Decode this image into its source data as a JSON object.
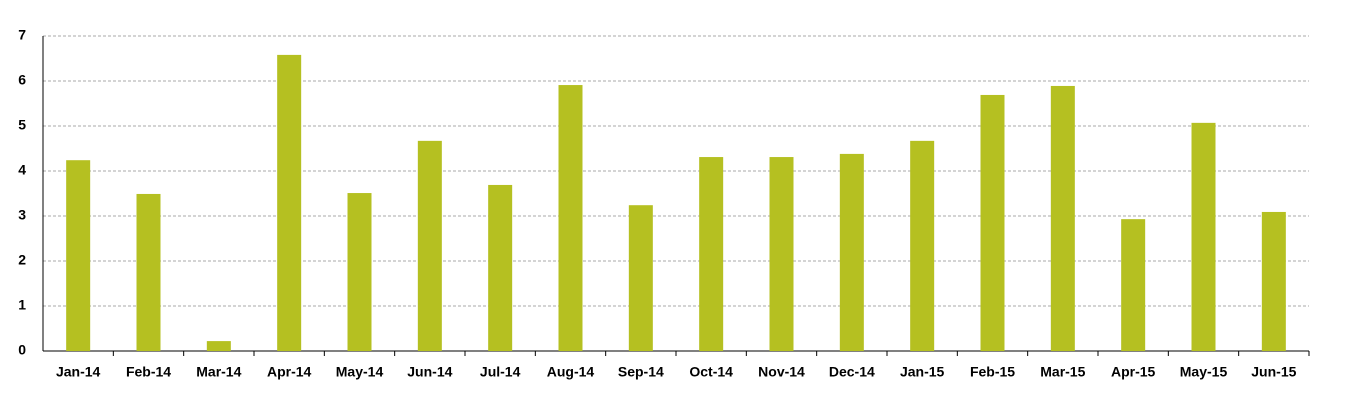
{
  "chart_data": {
    "type": "bar",
    "categories": [
      "Jan-14",
      "Feb-14",
      "Mar-14",
      "Apr-14",
      "May-14",
      "Jun-14",
      "Jul-14",
      "Aug-14",
      "Sep-14",
      "Oct-14",
      "Nov-14",
      "Dec-14",
      "Jan-15",
      "Feb-15",
      "Mar-15",
      "Apr-15",
      "May-15",
      "Jun-15"
    ],
    "values": [
      4.24,
      3.49,
      0.22,
      6.58,
      3.51,
      4.67,
      3.69,
      5.91,
      3.24,
      4.31,
      4.31,
      4.38,
      4.67,
      5.69,
      5.89,
      2.93,
      5.07,
      3.09
    ],
    "color": "#b5c021",
    "ylim": [
      0,
      7
    ],
    "yticks": [
      0,
      1,
      2,
      3,
      4,
      5,
      6,
      7
    ],
    "grid": true
  }
}
